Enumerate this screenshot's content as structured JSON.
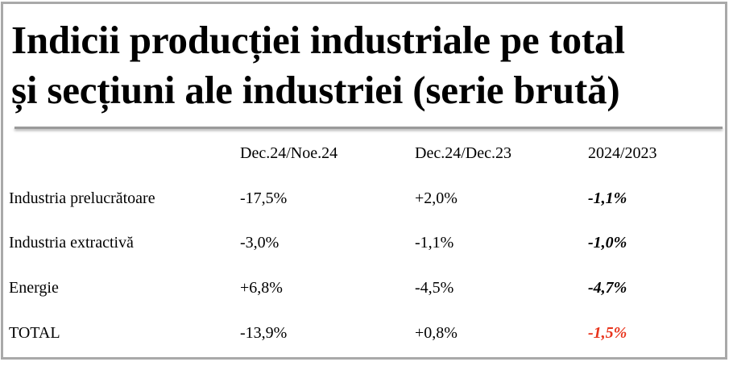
{
  "title": {
    "line1": "Indicii producției industriale pe total",
    "line2": "și secțiuni ale industriei (serie brută)"
  },
  "table": {
    "headers": [
      "",
      "Dec.24/Noe.24",
      "Dec.24/Dec.23",
      "2024/2023"
    ],
    "rows": [
      {
        "label": "Industria prelucrătoare",
        "values": [
          "-17,5%",
          "+2,0%",
          "-1,1%"
        ]
      },
      {
        "label": "Industria extractivă",
        "values": [
          "-3,0%",
          "-1,1%",
          "-1,0%"
        ]
      },
      {
        "label": "Energie",
        "values": [
          "+6,8%",
          "-4,5%",
          "-4,7%"
        ]
      },
      {
        "label": "TOTAL",
        "values": [
          "-13,9%",
          "+0,8%",
          "-1,5%"
        ]
      }
    ]
  },
  "colors": {
    "frame_border": "#a9a9a9",
    "divider": "#9a9a9a",
    "total_highlight": "#e8341c"
  }
}
